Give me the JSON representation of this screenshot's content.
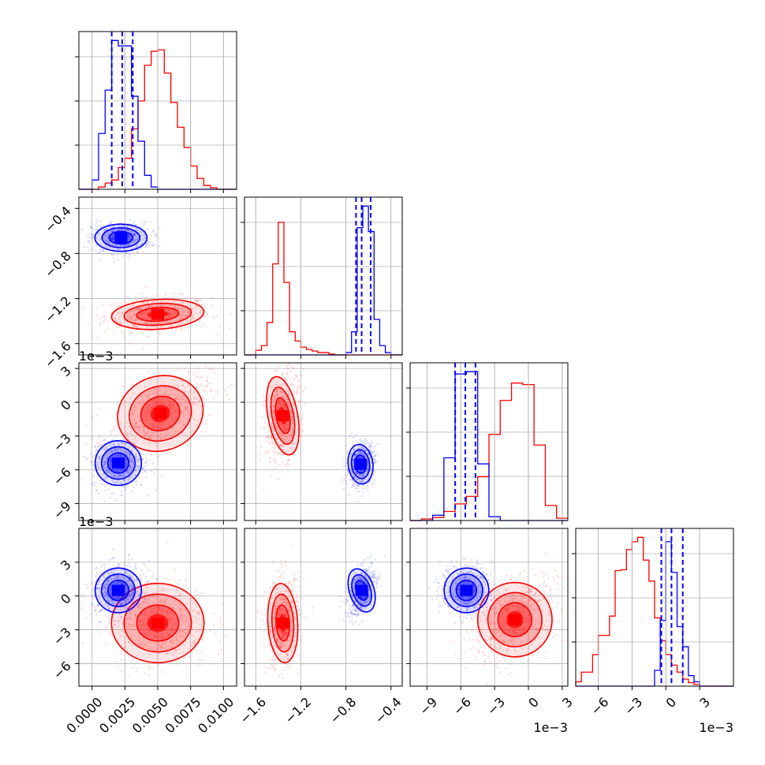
{
  "chart_data": {
    "type": "corner",
    "grid": true,
    "colors": {
      "blue": "#0000ff",
      "red": "#ff0000"
    },
    "series": [
      "blue",
      "red"
    ],
    "dims": [
      {
        "range": [
          -0.001,
          0.011
        ],
        "ticks": [
          0.0,
          0.0025,
          0.005,
          0.0075,
          0.01
        ],
        "tick_labels": [
          "0.0000",
          "0.0025",
          "0.0050",
          "0.0075",
          "0.0100"
        ],
        "offset": ""
      },
      {
        "range": [
          -1.7,
          -0.3
        ],
        "ticks": [
          -1.6,
          -1.2,
          -0.8,
          -0.4
        ],
        "tick_labels": [
          "−1.6",
          "−1.2",
          "−0.8",
          "−0.4"
        ],
        "offset": "1e−3"
      },
      {
        "range": [
          -10.5,
          3.5
        ],
        "ticks": [
          -9,
          -6,
          -3,
          0,
          3
        ],
        "tick_labels": [
          "−9",
          "−6",
          "−3",
          "0",
          "3"
        ],
        "offset": "1e−3"
      },
      {
        "range": [
          -8.0,
          6.0
        ],
        "ticks": [
          -6,
          -3,
          0,
          3
        ],
        "tick_labels": [
          "−6",
          "−3",
          "0",
          "3"
        ],
        "offset": "1e−3"
      }
    ],
    "histograms": [
      {
        "dim": 0,
        "bin_edges": [
          -0.001,
          -0.0005,
          0.0,
          0.0005,
          0.001,
          0.0015,
          0.002,
          0.0025,
          0.003,
          0.0035,
          0.004,
          0.0045,
          0.005,
          0.0055,
          0.006,
          0.0065,
          0.007,
          0.0075,
          0.008,
          0.0085,
          0.009,
          0.0095,
          0.01,
          0.0105,
          0.011
        ],
        "blue": [
          0,
          0,
          12,
          72,
          128,
          192,
          185,
          185,
          120,
          62,
          18,
          3,
          0,
          0,
          0,
          0,
          0,
          0,
          0,
          0,
          0,
          0,
          0,
          0
        ],
        "red": [
          0,
          0,
          0,
          3,
          8,
          12,
          28,
          40,
          78,
          114,
          160,
          178,
          180,
          150,
          112,
          80,
          54,
          30,
          14,
          5,
          2,
          0,
          0,
          0
        ],
        "quantiles": [
          0.0015,
          0.0023,
          0.0031
        ]
      },
      {
        "dim": 1,
        "bin_edges": [
          -1.7,
          -1.65,
          -1.6,
          -1.55,
          -1.5,
          -1.45,
          -1.4,
          -1.35,
          -1.3,
          -1.25,
          -1.2,
          -1.15,
          -1.1,
          -1.05,
          -1.0,
          -0.95,
          -0.9,
          -0.85,
          -0.8,
          -0.75,
          -0.7,
          -0.65,
          -0.6,
          -0.55,
          -0.5,
          -0.45,
          -0.4,
          -0.35,
          -0.3
        ],
        "blue": [
          0,
          0,
          0,
          0,
          0,
          0,
          0,
          0,
          0,
          0,
          0,
          0,
          0,
          0,
          0,
          0,
          0,
          0,
          3,
          30,
          165,
          193,
          160,
          46,
          12,
          3,
          0,
          0
        ],
        "red": [
          0,
          0,
          6,
          12,
          42,
          118,
          172,
          94,
          30,
          18,
          10,
          7,
          5,
          3,
          3,
          1,
          0,
          0,
          0,
          0,
          0,
          0,
          0,
          0,
          0,
          0,
          0,
          0
        ],
        "quantiles": [
          -0.71,
          -0.66,
          -0.58
        ]
      },
      {
        "dim": 2,
        "bin_edges": [
          -10.5,
          -9.5,
          -8.5,
          -7.5,
          -6.5,
          -5.5,
          -4.5,
          -3.5,
          -2.5,
          -1.5,
          -0.5,
          0.5,
          1.5,
          2.5,
          3.5
        ],
        "blue": [
          0,
          0,
          7,
          83,
          194,
          197,
          75,
          5,
          0,
          0,
          0,
          0,
          0,
          0
        ],
        "red": [
          0,
          2,
          4,
          12,
          22,
          32,
          58,
          114,
          159,
          182,
          180,
          100,
          20,
          3
        ],
        "quantiles": [
          -6.5,
          -5.6,
          -4.7
        ]
      },
      {
        "dim": 3,
        "bin_edges": [
          -8.0,
          -7.5,
          -7.0,
          -6.5,
          -6.0,
          -5.5,
          -5.0,
          -4.5,
          -4.0,
          -3.5,
          -3.0,
          -2.5,
          -2.0,
          -1.5,
          -1.0,
          -0.5,
          0.0,
          0.5,
          1.0,
          1.5,
          2.0,
          2.5,
          3.0,
          3.5,
          4.0,
          4.5,
          5.0,
          5.5,
          6.0
        ],
        "blue": [
          0,
          0,
          0,
          0,
          0,
          0,
          0,
          0,
          0,
          0,
          0,
          0,
          0,
          0,
          18,
          75,
          165,
          130,
          68,
          45,
          12,
          5,
          0,
          0,
          0,
          0,
          0,
          0
        ],
        "red": [
          5,
          16,
          16,
          36,
          58,
          58,
          80,
          132,
          133,
          156,
          165,
          170,
          144,
          120,
          78,
          52,
          36,
          24,
          16,
          8,
          4,
          2,
          0,
          0,
          0,
          0,
          0,
          0
        ],
        "quantiles": [
          -0.4,
          0.5,
          1.5
        ]
      }
    ],
    "pairs": [
      {
        "x": 0,
        "y": 1,
        "blue": {
          "mx": 0.0022,
          "my": -0.66,
          "sx": 0.0009,
          "sy": 0.055,
          "r": 0.0
        },
        "red": {
          "mx": 0.005,
          "my": -1.34,
          "sx": 0.0016,
          "sy": 0.06,
          "r": 0.1
        }
      },
      {
        "x": 0,
        "y": 2,
        "blue": {
          "mx": 0.002,
          "my": -5.4,
          "sx": 0.0008,
          "sy": 0.9,
          "r": 0.0
        },
        "red": {
          "mx": 0.0052,
          "my": -1.0,
          "sx": 0.0015,
          "sy": 1.5,
          "r": 0.55
        }
      },
      {
        "x": 0,
        "y": 3,
        "blue": {
          "mx": 0.002,
          "my": 0.5,
          "sx": 0.0008,
          "sy": 0.9,
          "r": 0.1
        },
        "red": {
          "mx": 0.005,
          "my": -2.4,
          "sx": 0.0016,
          "sy": 1.6,
          "r": 0.0
        }
      },
      {
        "x": 1,
        "y": 2,
        "blue": {
          "mx": -0.67,
          "my": -5.5,
          "sx": 0.05,
          "sy": 0.8,
          "r": 0.2
        },
        "red": {
          "mx": -1.36,
          "my": -1.2,
          "sx": 0.06,
          "sy": 1.6,
          "r": 0.3
        }
      },
      {
        "x": 1,
        "y": 3,
        "blue": {
          "mx": -0.66,
          "my": 0.5,
          "sx": 0.05,
          "sy": 0.9,
          "r": 0.5
        },
        "red": {
          "mx": -1.36,
          "my": -2.4,
          "sx": 0.06,
          "sy": 1.6,
          "r": 0.1
        }
      },
      {
        "x": 2,
        "y": 3,
        "blue": {
          "mx": -5.5,
          "my": 0.5,
          "sx": 0.9,
          "sy": 0.9,
          "r": 0.0
        },
        "red": {
          "mx": -1.2,
          "my": -2.1,
          "sx": 1.5,
          "sy": 1.5,
          "r": 0.45
        }
      }
    ]
  }
}
